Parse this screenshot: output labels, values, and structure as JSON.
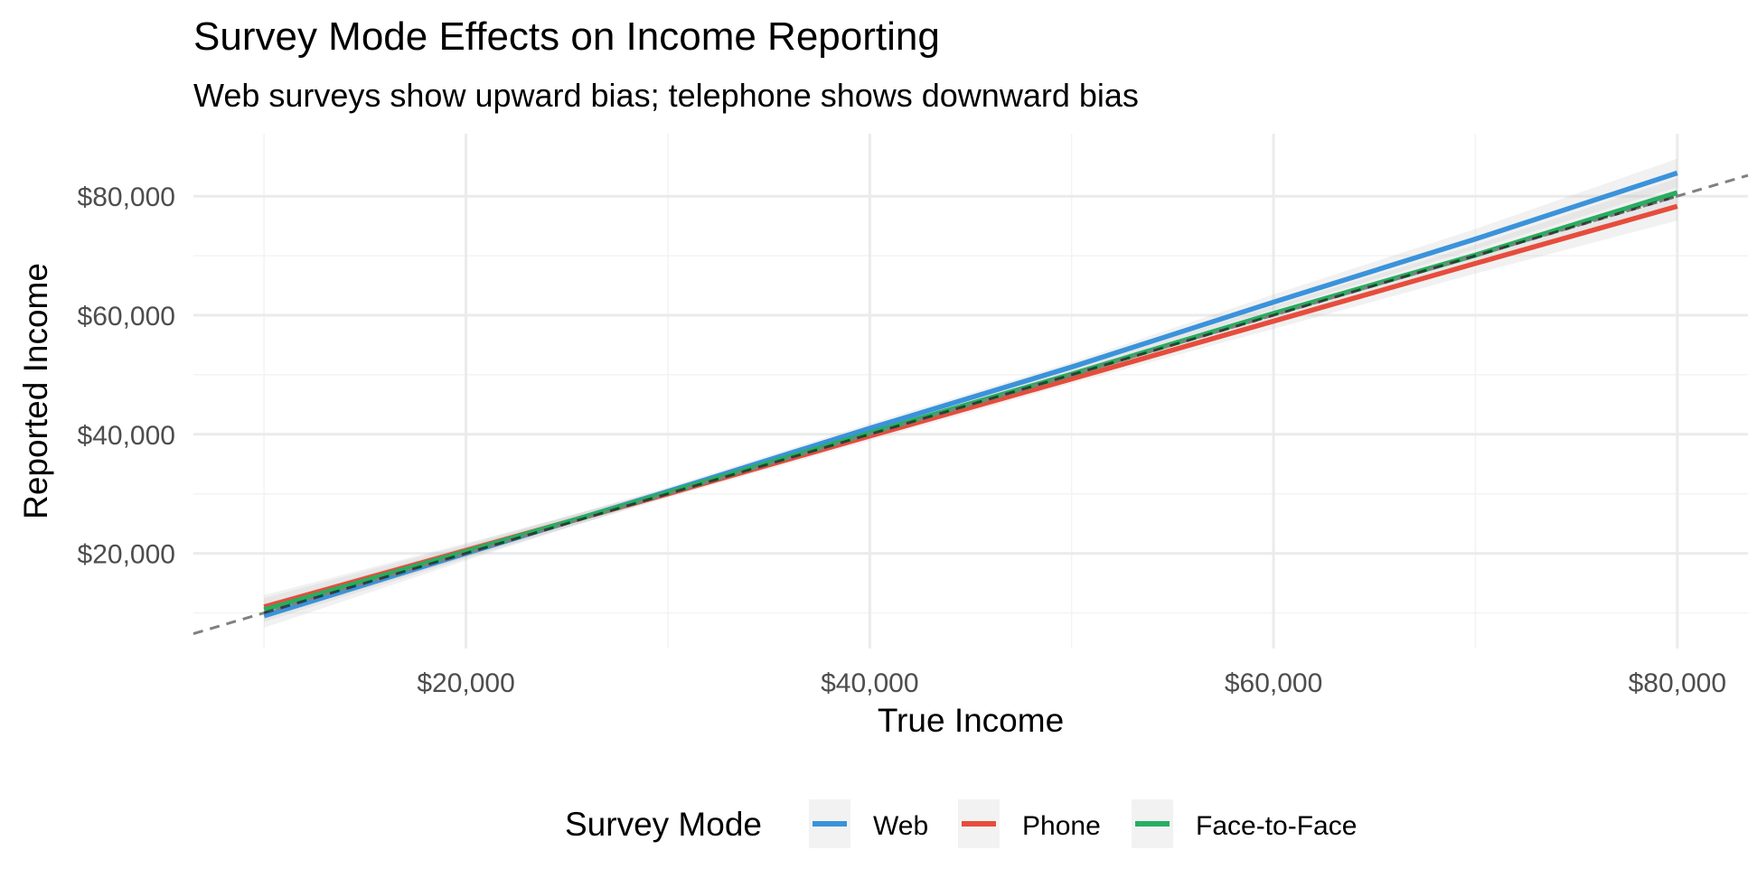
{
  "chart_data": {
    "type": "line",
    "title": "Survey Mode Effects on Income Reporting",
    "subtitle": "Web surveys show upward bias; telephone shows downward bias",
    "xlabel": "True Income",
    "ylabel": "Reported Income",
    "xlim": [
      6500,
      83500
    ],
    "ylim": [
      4000,
      90500
    ],
    "x_ticks": [
      20000,
      40000,
      60000,
      80000
    ],
    "x_tick_labels": [
      "$20,000",
      "$40,000",
      "$60,000",
      "$80,000"
    ],
    "y_ticks": [
      20000,
      40000,
      60000,
      80000
    ],
    "y_tick_labels": [
      "$20,000",
      "$40,000",
      "$60,000",
      "$80,000"
    ],
    "minor_x": [
      10000,
      30000,
      50000,
      70000
    ],
    "minor_y": [
      10000,
      30000,
      50000,
      70000
    ],
    "grid": true,
    "legend": {
      "title": "Survey Mode",
      "position": "bottom",
      "entries": [
        "Web",
        "Phone",
        "Face-to-Face"
      ]
    },
    "reference_line": {
      "style": "dashed",
      "slope": 1,
      "intercept": 0,
      "color": "#808080"
    },
    "x": [
      10000,
      20000,
      30000,
      40000,
      50000,
      60000,
      70000,
      80000
    ],
    "series": [
      {
        "name": "Web",
        "color": "#3A93DB",
        "values": [
          9500,
          20000,
          30400,
          41000,
          51300,
          62200,
          72800,
          83900
        ],
        "ci_lower": [
          7500,
          18800,
          29700,
          40200,
          50500,
          60900,
          71100,
          81500
        ],
        "ci_upper": [
          11500,
          21200,
          31100,
          41800,
          52100,
          63500,
          74500,
          86300
        ]
      },
      {
        "name": "Phone",
        "color": "#E74C3C",
        "values": [
          11000,
          20500,
          30000,
          39700,
          49300,
          59000,
          68700,
          78300
        ],
        "ci_lower": [
          9000,
          19300,
          29300,
          38900,
          48500,
          57700,
          67000,
          75900
        ],
        "ci_upper": [
          13000,
          21700,
          30700,
          40500,
          50100,
          60300,
          70400,
          80700
        ]
      },
      {
        "name": "Face-to-Face",
        "color": "#27AE60",
        "values": [
          10500,
          20300,
          30200,
          40200,
          50100,
          60300,
          70100,
          80600
        ],
        "ci_lower": [
          8500,
          19100,
          29500,
          39400,
          49300,
          59000,
          68400,
          78200
        ],
        "ci_upper": [
          12500,
          21500,
          30900,
          41000,
          50900,
          61600,
          71800,
          83000
        ]
      }
    ],
    "colors": {
      "grid_major": "#EBEBEB",
      "grid_minor": "#F3F3F3",
      "ribbon": "#BEBEBE",
      "axis_text": "#4D4D4D"
    }
  }
}
